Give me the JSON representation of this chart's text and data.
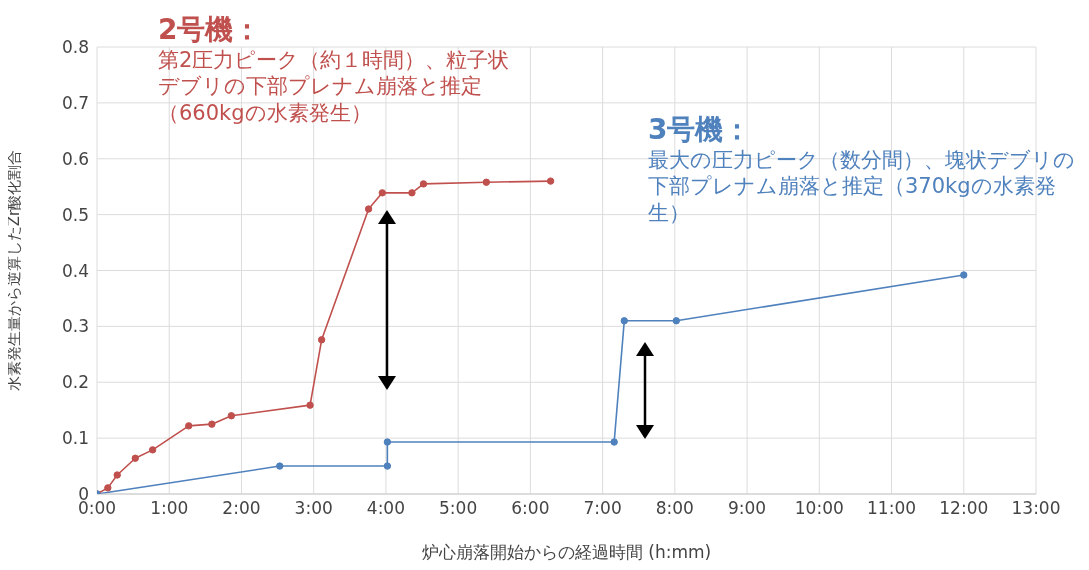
{
  "chart_data": {
    "type": "line",
    "xlabel": "炉心崩落開始からの経過時間 (h:mm)",
    "ylabel": "水素発生量から逆算したZr酸化割合",
    "annotations": [
      "2号機：",
      "第2圧力ピーク（約１時間）、粒子状デブリの下部プレナム崩落と推定（660kgの水素発生）",
      "3号機：",
      "最大の圧力ピーク（数分間）、塊状デブリの下部プレナム崩落と推定（370kgの水素発生）"
    ],
    "series": [
      {
        "color": "#c0504d",
        "x": [
          0,
          0.15,
          0.28,
          0.53,
          0.77,
          1.27,
          1.59,
          1.86,
          2.95,
          3.11,
          3.76,
          3.95,
          4.36,
          4.52,
          5.39,
          6.28
        ],
        "values": [
          0,
          0.011,
          0.034,
          0.064,
          0.079,
          0.122,
          0.125,
          0.14,
          0.159,
          0.276,
          0.51,
          0.539,
          0.539,
          0.555,
          0.558,
          0.56
        ]
      },
      {
        "color": "#4f81bd",
        "x": [
          0,
          2.53,
          4.02,
          4.02,
          7.16,
          7.3,
          8.02,
          12.0
        ],
        "values": [
          0,
          0.05,
          0.05,
          0.093,
          0.093,
          0.31,
          0.31,
          0.392
        ]
      }
    ],
    "xlim": [
      0,
      13
    ],
    "xticks": [
      {
        "value": 0,
        "label": "0:00"
      },
      {
        "value": 1,
        "label": "1:00"
      },
      {
        "value": 2,
        "label": "2:00"
      },
      {
        "value": 3,
        "label": "3:00"
      },
      {
        "value": 4,
        "label": "4:00"
      },
      {
        "value": 5,
        "label": "5:00"
      },
      {
        "value": 6,
        "label": "6:00"
      },
      {
        "value": 7,
        "label": "7:00"
      },
      {
        "value": 8,
        "label": "8:00"
      },
      {
        "value": 9,
        "label": "9:00"
      },
      {
        "value": 10,
        "label": "10:00"
      },
      {
        "value": 11,
        "label": "11:00"
      },
      {
        "value": 12,
        "label": "12:00"
      },
      {
        "value": 13,
        "label": "13:00"
      }
    ],
    "ylim": [
      0,
      0.8
    ],
    "yticks": [
      0,
      0.1,
      0.2,
      0.3,
      0.4,
      0.5,
      0.6,
      0.7,
      0.8
    ],
    "grid": true,
    "marker": "circle",
    "line_style": "solid"
  }
}
